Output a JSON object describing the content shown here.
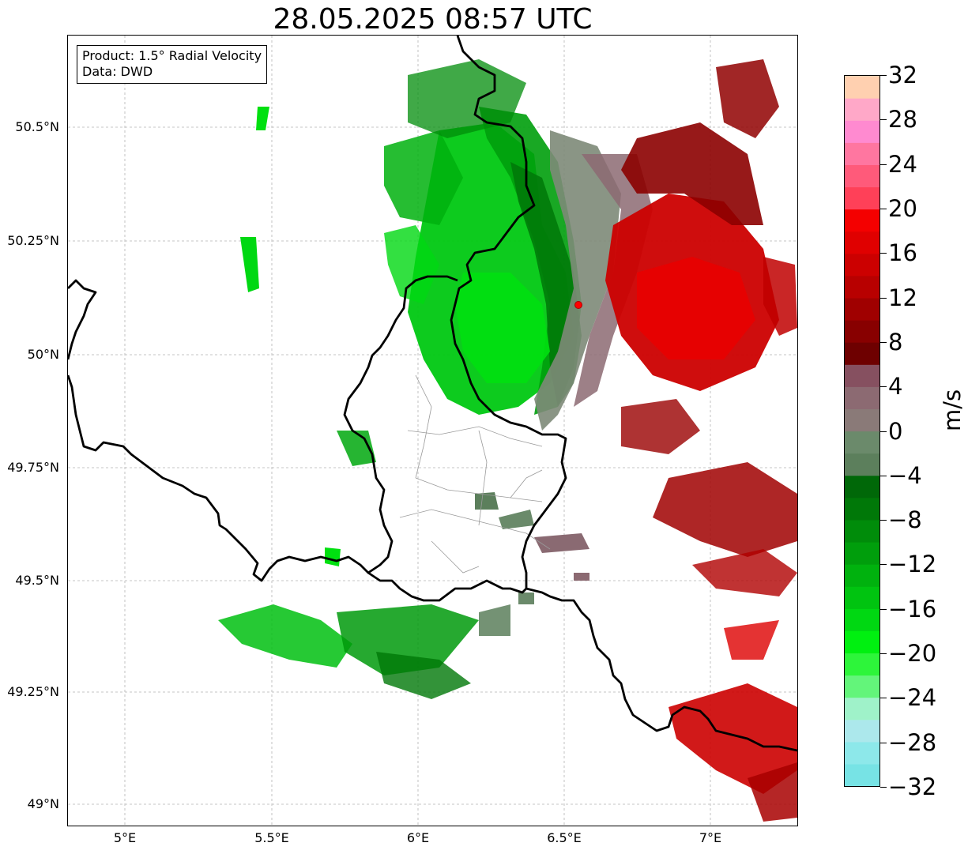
{
  "title": "28.05.2025 08:57 UTC",
  "info": {
    "product_line": "Product: 1.5° Radial Velocity",
    "data_line": "Data: DWD"
  },
  "map": {
    "lon_range": [
      4.8,
      7.3
    ],
    "lat_range": [
      48.955,
      50.713
    ],
    "lat_labels": [
      "50.5°N",
      "50.25°N",
      "50°N",
      "49.75°N",
      "49.5°N",
      "49.25°N",
      "49°N"
    ],
    "lat_values": [
      50.5,
      50.25,
      50.0,
      49.75,
      49.5,
      49.25,
      49.0
    ],
    "lon_labels": [
      "5°E",
      "5.5°E",
      "6°E",
      "6.5°E",
      "7°E"
    ],
    "lon_values": [
      5.0,
      5.5,
      6.0,
      6.5,
      7.0
    ],
    "gridlines": true,
    "radar_site": {
      "lon": 6.55,
      "lat": 50.11,
      "color": "#ff0000"
    },
    "layers": [
      "national-borders",
      "luxembourg-cantons",
      "radial-velocity-echoes"
    ]
  },
  "colorbar": {
    "unit": "m/s",
    "vmin": -32,
    "vmax": 32,
    "tick_labels": [
      "32",
      "28",
      "24",
      "20",
      "16",
      "12",
      "8",
      "4",
      "0",
      "−4",
      "−8",
      "−12",
      "−16",
      "−20",
      "−24",
      "−28",
      "−32"
    ],
    "tick_values": [
      32,
      28,
      24,
      20,
      16,
      12,
      8,
      4,
      0,
      -4,
      -8,
      -12,
      -16,
      -20,
      -24,
      -28,
      -32
    ],
    "colors_bottom_to_top": [
      "#77e3e5",
      "#8de8ea",
      "#ace8ec",
      "#9ff2c9",
      "#63f57a",
      "#2df53a",
      "#00f010",
      "#00d812",
      "#00c410",
      "#00b20e",
      "#009e0c",
      "#008c0a",
      "#007808",
      "#006808",
      "#5c7f5c",
      "#6b8a6b",
      "#8a7a78",
      "#8c6a72",
      "#865060",
      "#6e0000",
      "#880000",
      "#a00000",
      "#b80000",
      "#cc0000",
      "#e00000",
      "#f40000",
      "#ff4058",
      "#ff5a7a",
      "#ff76a0",
      "#ff8ad0",
      "#ffa8c8",
      "#ffd0b0"
    ]
  }
}
